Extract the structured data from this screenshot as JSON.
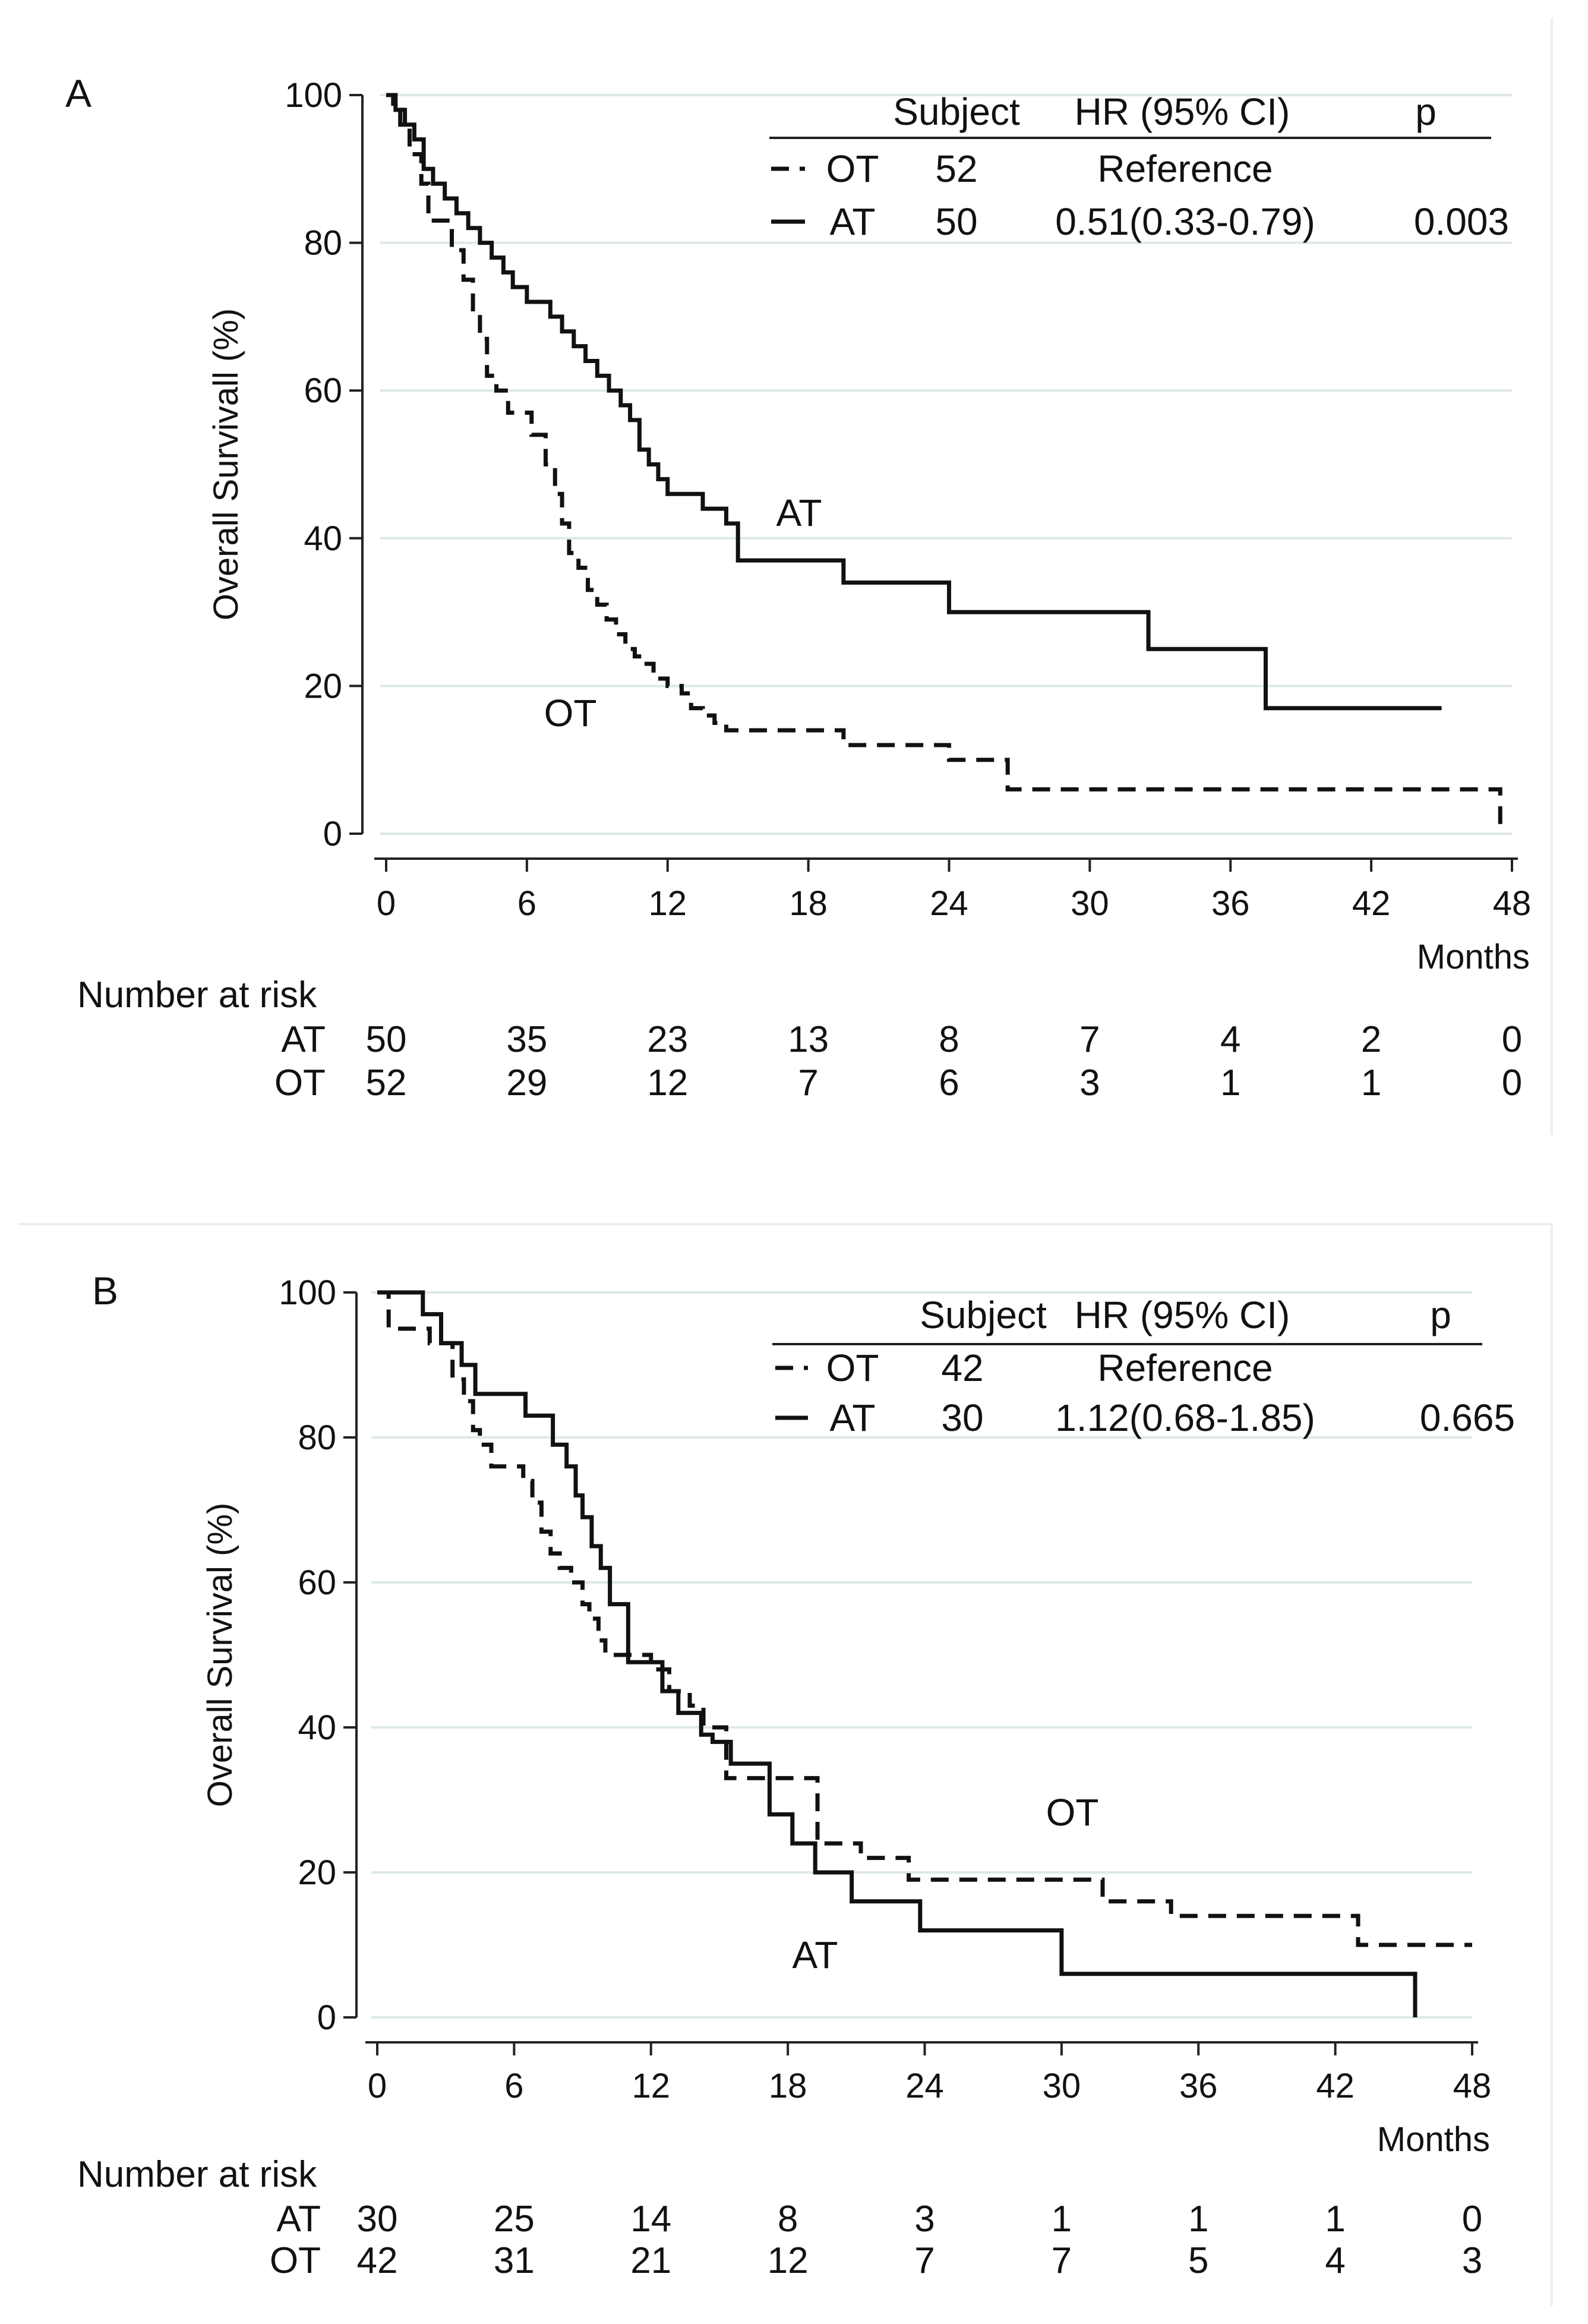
{
  "chart_data": [
    {
      "type": "line",
      "panel": "A",
      "ylabel": "Overall Survivall (%)",
      "xlabel": "Months",
      "xlim": [
        0,
        48
      ],
      "ylim": [
        0,
        100
      ],
      "xticks": [
        0,
        6,
        12,
        18,
        24,
        30,
        36,
        42,
        48
      ],
      "yticks": [
        0,
        20,
        40,
        60,
        80,
        100
      ],
      "legend": {
        "headers": [
          "Subject",
          "HR (95% CI)",
          "p"
        ],
        "rows": [
          {
            "group": "OT",
            "style": "dashed",
            "subject": "52",
            "hr": "Reference",
            "p": ""
          },
          {
            "group": "AT",
            "style": "solid",
            "subject": "50",
            "hr": "0.51(0.33-0.79)",
            "p": "0.003"
          }
        ]
      },
      "annotations": [
        "AT",
        "OT"
      ],
      "series": [
        {
          "name": "AT",
          "style": "solid",
          "x": [
            0,
            0.4,
            0.8,
            1.2,
            1.6,
            2.0,
            2.5,
            3.0,
            3.5,
            4.0,
            4.5,
            5.0,
            5.4,
            6.0,
            7.0,
            7.5,
            8.0,
            8.5,
            9.0,
            9.5,
            10.0,
            10.4,
            10.8,
            11.2,
            11.6,
            12.0,
            13.5,
            14.5,
            15.0,
            19.5,
            24.0,
            32.5,
            37.5,
            45.0
          ],
          "y": [
            100,
            98,
            96,
            94,
            90,
            88,
            86,
            84,
            82,
            80,
            78,
            76,
            74,
            72,
            70,
            68,
            66,
            64,
            62,
            60,
            58,
            56,
            52,
            50,
            48,
            46,
            44,
            42,
            37,
            34,
            30,
            25,
            17,
            17
          ]
        },
        {
          "name": "OT",
          "style": "dashed",
          "x": [
            0,
            0.3,
            0.6,
            1.0,
            1.5,
            1.8,
            2.8,
            3.3,
            3.7,
            4.0,
            4.3,
            4.7,
            5.2,
            6.2,
            6.8,
            7.2,
            7.5,
            7.8,
            8.2,
            8.6,
            9.0,
            9.4,
            9.8,
            10.2,
            10.6,
            11.0,
            11.4,
            12.0,
            12.6,
            13.0,
            13.5,
            14.0,
            14.5,
            19.5,
            24.0,
            26.5,
            47.5,
            47.5
          ],
          "y": [
            100,
            98,
            96,
            92,
            88,
            83,
            79,
            75,
            71,
            67,
            62,
            60,
            57,
            54,
            50,
            46,
            42,
            38,
            36,
            33,
            31,
            29,
            27,
            25,
            24,
            23,
            21,
            20,
            19,
            17,
            16,
            15,
            14,
            12,
            10,
            6,
            6,
            0
          ]
        }
      ],
      "risk_table": {
        "title": "Number at risk",
        "times": [
          0,
          6,
          12,
          18,
          24,
          30,
          36,
          42,
          48
        ],
        "rows": [
          {
            "label": "AT",
            "values": [
              "50",
              "35",
              "23",
              "13",
              "8",
              "7",
              "4",
              "2",
              "0"
            ]
          },
          {
            "label": "OT",
            "values": [
              "52",
              "29",
              "12",
              "7",
              "6",
              "3",
              "1",
              "1",
              "0"
            ]
          }
        ]
      }
    },
    {
      "type": "line",
      "panel": "B",
      "ylabel": "Overall Survival (%)",
      "xlabel": "Months",
      "xlim": [
        0,
        48
      ],
      "ylim": [
        0,
        100
      ],
      "xticks": [
        0,
        6,
        12,
        18,
        24,
        30,
        36,
        42,
        48
      ],
      "yticks": [
        0,
        20,
        40,
        60,
        80,
        100
      ],
      "legend": {
        "headers": [
          "Subject",
          "HR (95% CI)",
          "p"
        ],
        "rows": [
          {
            "group": "OT",
            "style": "dashed",
            "subject": "42",
            "hr": "Reference",
            "p": ""
          },
          {
            "group": "AT",
            "style": "solid",
            "subject": "30",
            "hr": "1.12(0.68-1.85)",
            "p": "0.665"
          }
        ]
      },
      "annotations": [
        "OT",
        "AT"
      ],
      "series": [
        {
          "name": "AT",
          "style": "solid",
          "x": [
            0,
            2.0,
            2.8,
            3.7,
            4.3,
            6.5,
            7.7,
            8.3,
            8.7,
            9.0,
            9.4,
            9.8,
            10.2,
            11.0,
            12.5,
            13.2,
            14.2,
            14.7,
            15.5,
            17.2,
            18.2,
            19.2,
            20.8,
            23.8,
            30.0,
            45.5,
            45.5
          ],
          "y": [
            100,
            97,
            93,
            90,
            86,
            83,
            79,
            76,
            72,
            69,
            65,
            62,
            57,
            49,
            45,
            42,
            39,
            38,
            35,
            28,
            24,
            20,
            16,
            12,
            6,
            6,
            0
          ]
        },
        {
          "name": "OT",
          "style": "dashed",
          "x": [
            0,
            0.5,
            2.3,
            3.3,
            3.8,
            4.2,
            4.5,
            5.0,
            6.4,
            6.8,
            7.2,
            7.6,
            8.0,
            8.5,
            9.0,
            9.3,
            9.7,
            10.0,
            10.6,
            11.5,
            12.0,
            12.8,
            13.7,
            14.3,
            15.3,
            17.5,
            19.3,
            21.2,
            23.3,
            31.8,
            34.8,
            43.0,
            48.0
          ],
          "y": [
            100,
            95,
            93,
            88,
            85,
            81,
            79,
            76,
            74,
            71,
            67,
            64,
            62,
            60,
            57,
            55,
            52,
            50,
            50,
            50,
            48,
            45,
            43,
            40,
            33,
            33,
            24,
            22,
            19,
            16,
            14,
            10,
            10
          ]
        }
      ],
      "risk_table": {
        "title": "Number at risk",
        "times": [
          0,
          6,
          12,
          18,
          24,
          30,
          36,
          42,
          48
        ],
        "rows": [
          {
            "label": "AT",
            "values": [
              "30",
              "25",
              "14",
              "8",
              "3",
              "1",
              "1",
              "1",
              "0"
            ]
          },
          {
            "label": "OT",
            "values": [
              "42",
              "31",
              "21",
              "12",
              "7",
              "7",
              "5",
              "4",
              "3"
            ]
          }
        ]
      }
    }
  ]
}
